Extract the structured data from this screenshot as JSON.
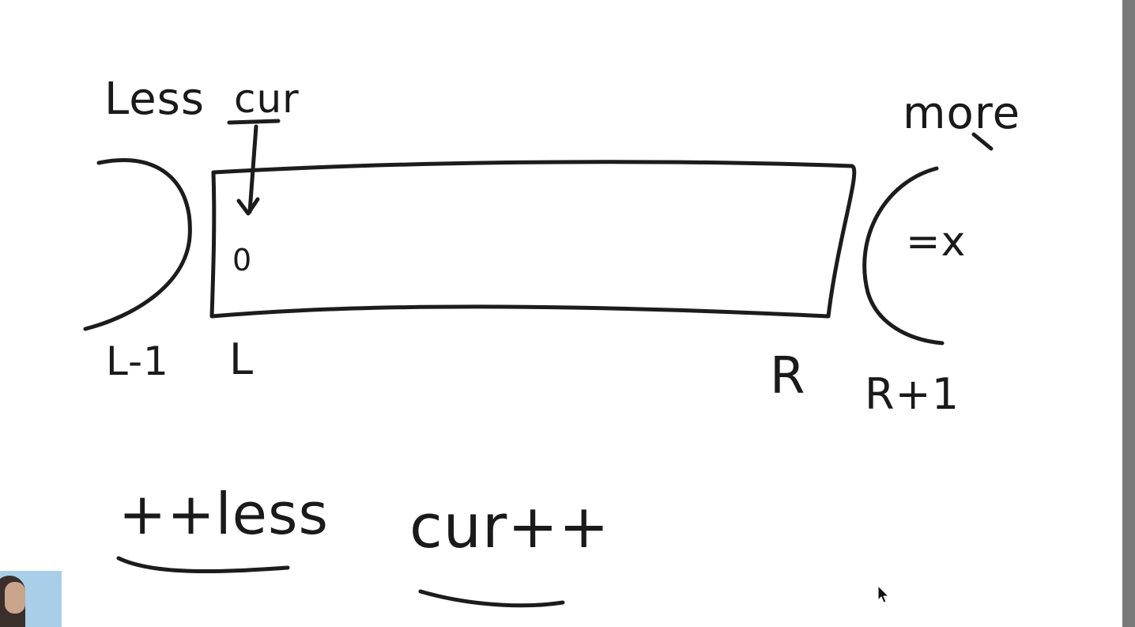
{
  "diagram": {
    "labels": {
      "less": "Less",
      "cur_top": "cur",
      "more": "more",
      "eq_x": "=x",
      "zero": "0",
      "l_minus_1": "L-1",
      "l": "L",
      "r": "R",
      "r_plus_1": "R+1",
      "plus_plus_less": "++less",
      "cur_plus_plus": "cur++"
    }
  },
  "colors": {
    "ink": "#1c1c1c",
    "background": "#ffffff",
    "scrollbar": "#7a7a7a"
  },
  "icons": {
    "cursor": "mouse-pointer-icon",
    "webcam": "webcam-thumbnail"
  }
}
